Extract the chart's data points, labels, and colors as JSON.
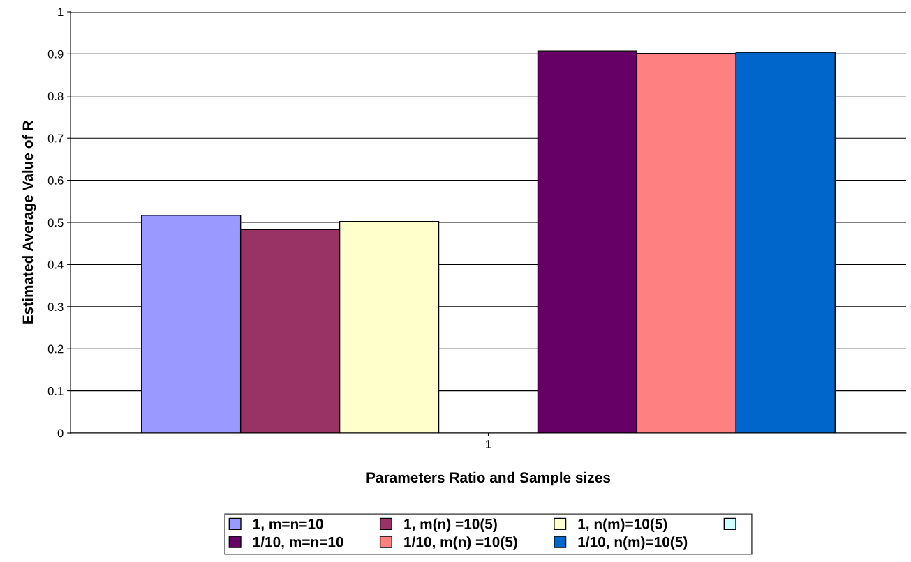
{
  "chart_data": {
    "type": "bar",
    "xlabel": "Parameters Ratio and Sample sizes",
    "ylabel": "Estimated Average Value of R",
    "categories": [
      "1"
    ],
    "series": [
      {
        "name": "1, m=n=10",
        "color": "#9999ff",
        "values": [
          0.517
        ]
      },
      {
        "name": "1, m(n) =10(5)",
        "color": "#993366",
        "values": [
          0.483
        ]
      },
      {
        "name": "1, n(m)=10(5)",
        "color": "#ffffcc",
        "values": [
          0.502
        ]
      },
      {
        "color": "#ccffff",
        "values": [
          null
        ]
      },
      {
        "name": "1/10, m=n=10",
        "color": "#660066",
        "values": [
          0.907
        ]
      },
      {
        "name": "1/10, m(n) =10(5)",
        "color": "#ff8080",
        "values": [
          0.901
        ]
      },
      {
        "name": "1/10, n(m)=10(5)",
        "color": "#0066cc",
        "values": [
          0.904
        ]
      }
    ],
    "ylim": [
      0,
      1
    ],
    "yticks": [
      0,
      0.1,
      0.2,
      0.3,
      0.4,
      0.5,
      0.6,
      0.7,
      0.8,
      0.9,
      1
    ],
    "grid": "y",
    "legend": "bottom"
  }
}
